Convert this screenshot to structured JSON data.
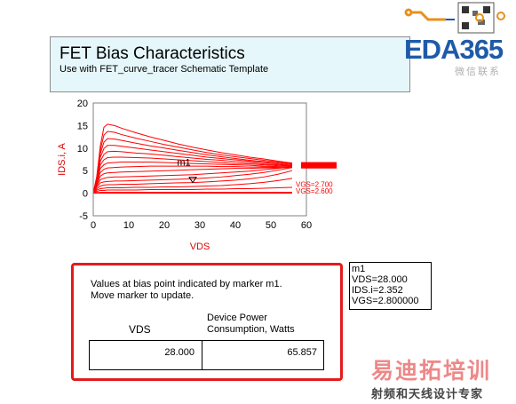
{
  "header": {
    "title": "FET Bias Characteristics",
    "subtitle": "Use with FET_curve_tracer Schematic Template"
  },
  "logo": {
    "text": "EDA365",
    "subtext": "微信联系"
  },
  "watermark": {
    "line1": "易迪拓培训",
    "line2": "射频和天线设计专家"
  },
  "marker": {
    "name": "m1",
    "vds": "VDS=28.000",
    "ids": "IDS.i=2.352",
    "vgs": "VGS=2.800000"
  },
  "panel": {
    "line1": "Values at bias point indicated by marker m1.",
    "line2": "Move marker to update.",
    "col1_header": "VDS",
    "col2_header_line1": "Device Power",
    "col2_header_line2": "Consumption, Watts",
    "vds_value": "28.000",
    "power_value": "65.857"
  },
  "colors": {
    "curve": "#ff0000",
    "panel_border": "#e31b1b",
    "title_bg": "#e6f7fb",
    "logo_blue": "#1e5aa8"
  },
  "chart_data": {
    "type": "line",
    "xlabel": "VDS",
    "ylabel": "IDS.i, A",
    "xlim": [
      0,
      60
    ],
    "ylim": [
      -5,
      20
    ],
    "xticks": [
      0,
      10,
      20,
      30,
      40,
      50,
      60
    ],
    "yticks": [
      -5,
      0,
      5,
      10,
      15,
      20
    ],
    "grid": false,
    "x": [
      0,
      1,
      2,
      3,
      4,
      6,
      8,
      12,
      16,
      20,
      24,
      28,
      32,
      36,
      40,
      44,
      48,
      52,
      56
    ],
    "series": [
      {
        "values": [
          0,
          3.8,
          10.5,
          14.6,
          15.3,
          15.0,
          14.4,
          13.4,
          12.5,
          11.7,
          10.9,
          10.2,
          9.6,
          9.0,
          8.5,
          8.0,
          7.6,
          7.1,
          6.7
        ]
      },
      {
        "values": [
          0,
          3.6,
          9.6,
          12.9,
          13.7,
          13.5,
          13.0,
          12.2,
          11.5,
          10.8,
          10.2,
          9.6,
          9.0,
          8.5,
          8.1,
          7.7,
          7.3,
          6.9,
          6.6
        ]
      },
      {
        "values": [
          0,
          3.4,
          8.8,
          11.3,
          12.1,
          12.0,
          11.7,
          11.1,
          10.5,
          10.0,
          9.5,
          9.0,
          8.5,
          8.1,
          7.7,
          7.3,
          7.0,
          6.7,
          6.4
        ]
      },
      {
        "values": [
          0,
          3.2,
          8.0,
          9.9,
          10.6,
          10.6,
          10.4,
          10.0,
          9.6,
          9.2,
          8.8,
          8.4,
          8.0,
          7.7,
          7.4,
          7.1,
          6.8,
          6.5,
          6.2
        ]
      },
      {
        "values": [
          0,
          3.0,
          7.1,
          8.6,
          9.2,
          9.3,
          9.2,
          8.9,
          8.7,
          8.4,
          8.1,
          7.8,
          7.5,
          7.3,
          7.0,
          6.8,
          6.5,
          6.3,
          6.1
        ]
      },
      {
        "values": [
          0,
          2.8,
          6.3,
          7.4,
          7.9,
          8.0,
          8.0,
          7.9,
          7.8,
          7.6,
          7.4,
          7.2,
          7.0,
          6.8,
          6.6,
          6.5,
          6.3,
          6.1,
          6.0
        ]
      },
      {
        "values": [
          0,
          2.6,
          5.5,
          6.3,
          6.7,
          6.8,
          6.9,
          6.9,
          6.9,
          6.8,
          6.7,
          6.6,
          6.5,
          6.4,
          6.3,
          6.2,
          6.0,
          5.9,
          5.8
        ]
      },
      {
        "values": [
          0,
          2.3,
          4.6,
          5.3,
          5.6,
          5.7,
          5.8,
          5.9,
          6.0,
          6.0,
          6.0,
          6.0,
          6.0,
          5.9,
          5.9,
          5.8,
          5.8,
          5.7,
          5.7
        ]
      },
      {
        "values": [
          0,
          2.0,
          3.8,
          4.3,
          4.5,
          4.6,
          4.7,
          4.8,
          4.9,
          5.0,
          5.1,
          5.2,
          5.3,
          5.4,
          5.5,
          5.5,
          5.6,
          5.6,
          5.7
        ]
      },
      {
        "values": [
          0,
          1.7,
          3.0,
          3.3,
          3.5,
          3.6,
          3.6,
          3.7,
          3.8,
          3.9,
          4.0,
          4.1,
          4.3,
          4.5,
          4.7,
          4.9,
          5.2,
          5.5,
          5.9
        ]
      },
      {
        "values": [
          0,
          1.4,
          2.3,
          2.5,
          2.6,
          2.7,
          2.7,
          2.8,
          2.9,
          3.0,
          3.1,
          3.2,
          3.4,
          3.6,
          3.9,
          4.2,
          4.6,
          5.1,
          5.7
        ]
      },
      {
        "values": [
          0,
          1.0,
          1.6,
          1.8,
          1.9,
          1.9,
          2.0,
          2.0,
          2.1,
          2.2,
          2.3,
          2.35,
          2.5,
          2.7,
          2.9,
          3.2,
          3.6,
          4.2,
          5.0
        ]
      },
      {
        "values": [
          0,
          0.7,
          1.0,
          1.1,
          1.2,
          1.2,
          1.2,
          1.3,
          1.3,
          1.4,
          1.4,
          1.5,
          1.6,
          1.7,
          1.9,
          2.1,
          2.4,
          2.8,
          3.3
        ]
      },
      {
        "values": [
          0,
          0.4,
          0.6,
          0.6,
          0.7,
          0.7,
          0.7,
          0.7,
          0.8,
          0.8,
          0.8,
          0.8,
          0.9,
          0.9,
          1.0,
          1.0,
          1.1,
          1.2,
          1.3
        ]
      },
      {
        "values": [
          0,
          0.15,
          0.2,
          0.2,
          0.2,
          0.2,
          0.2,
          0.2,
          0.2,
          0.2,
          0.2,
          0.2,
          0.2,
          0.2,
          0.2,
          0.2,
          0.2,
          0.2,
          0.2
        ]
      },
      {
        "values": [
          0,
          0.02,
          0.03,
          0.03,
          0.03,
          0.03,
          0.03,
          0.03,
          0.03,
          0.03,
          0.03,
          0.03,
          0.03,
          0.03,
          0.03,
          0.03,
          0.03,
          0.03,
          0.03
        ]
      }
    ],
    "line_labels": [
      {
        "text": "VGS=2.700",
        "x": 57,
        "y": 2.0
      },
      {
        "text": "VGS=2.600",
        "x": 57,
        "y": 0.5
      }
    ],
    "marker": {
      "label": "m1",
      "x": 28,
      "y": 2.352
    }
  }
}
